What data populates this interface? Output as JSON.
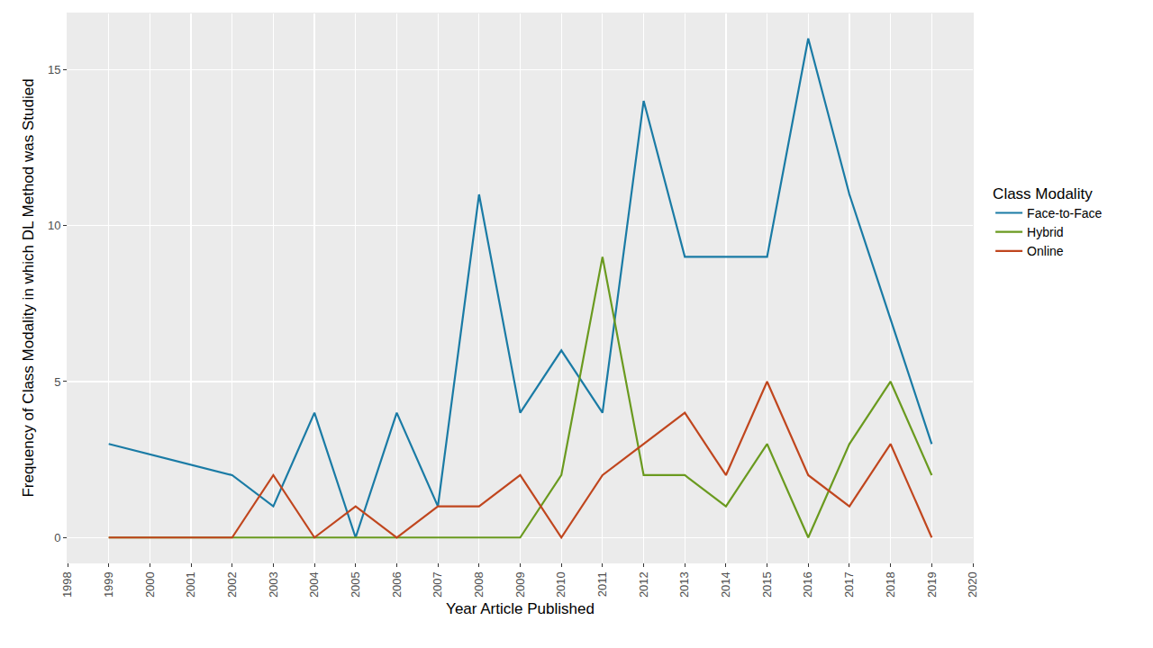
{
  "chart_data": {
    "type": "line",
    "x_label": "Year Article Published",
    "y_label": "Frequency of Class Modality in which DL Method was Studied",
    "legend_title": "Class Modality",
    "legend": "right",
    "grid": true,
    "x": [
      1999,
      2002,
      2003,
      2004,
      2005,
      2006,
      2007,
      2008,
      2009,
      2010,
      2011,
      2012,
      2013,
      2014,
      2015,
      2016,
      2017,
      2018,
      2019
    ],
    "series": [
      {
        "name": "Face-to-Face",
        "color": "#1A7BA5",
        "values": [
          3,
          2,
          1,
          4,
          0,
          4,
          1,
          11,
          4,
          6,
          4,
          14,
          9,
          9,
          9,
          16,
          11,
          7,
          3
        ]
      },
      {
        "name": "Hybrid",
        "color": "#6A9A1F",
        "values": [
          0,
          0,
          0,
          0,
          0,
          0,
          0,
          0,
          0,
          2,
          9,
          2,
          2,
          1,
          3,
          0,
          3,
          5,
          2
        ]
      },
      {
        "name": "Online",
        "color": "#C0461E",
        "values": [
          0,
          0,
          2,
          0,
          1,
          0,
          1,
          1,
          2,
          0,
          2,
          3,
          4,
          2,
          5,
          2,
          1,
          3,
          0
        ]
      }
    ],
    "xlim": [
      1998,
      2020
    ],
    "xticks": [
      1998,
      1999,
      2000,
      2001,
      2002,
      2003,
      2004,
      2005,
      2006,
      2007,
      2008,
      2009,
      2010,
      2011,
      2012,
      2013,
      2014,
      2015,
      2016,
      2017,
      2018,
      2019,
      2020
    ],
    "ylim": [
      -0.8,
      16.8
    ],
    "yticks": [
      0,
      5,
      10,
      15
    ]
  }
}
